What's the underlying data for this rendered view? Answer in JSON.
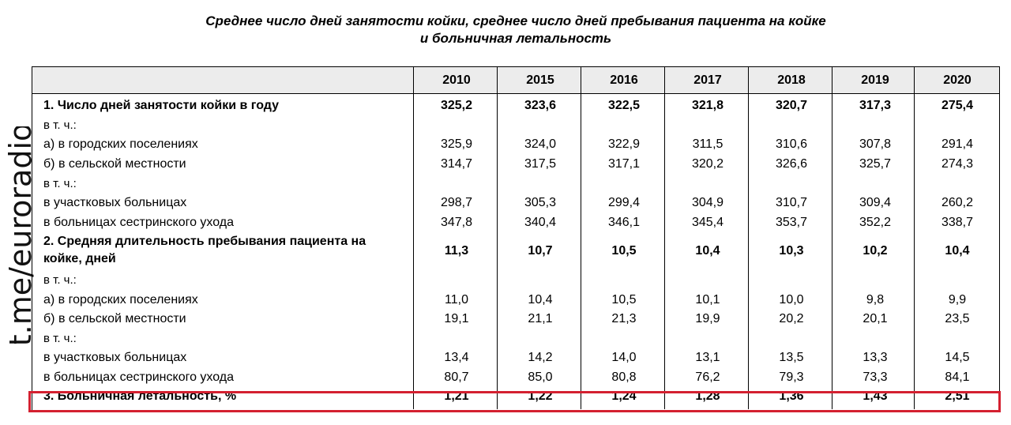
{
  "title": {
    "line1": "Среднее число дней занятости койки, среднее число дней пребывания пациента на койке",
    "line2": "и больничная летальность"
  },
  "watermark": "t.me/euroradio",
  "table": {
    "years": [
      "2010",
      "2015",
      "2016",
      "2017",
      "2018",
      "2019",
      "2020"
    ],
    "rows": [
      {
        "label": "1. Число дней занятости койки в году",
        "values": [
          "325,2",
          "323,6",
          "322,5",
          "321,8",
          "320,7",
          "317,3",
          "275,4"
        ]
      },
      {
        "label": "в т. ч.:",
        "values": []
      },
      {
        "label": "а) в городских поселениях",
        "values": [
          "325,9",
          "324,0",
          "322,9",
          "311,5",
          "310,6",
          "307,8",
          "291,4"
        ]
      },
      {
        "label": "б) в сельской местности",
        "values": [
          "314,7",
          "317,5",
          "317,1",
          "320,2",
          "326,6",
          "325,7",
          "274,3"
        ]
      },
      {
        "label": "в т. ч.:",
        "values": []
      },
      {
        "label": "в участковых больницах",
        "values": [
          "298,7",
          "305,3",
          "299,4",
          "304,9",
          "310,7",
          "309,4",
          "260,2"
        ]
      },
      {
        "label": "в больницах сестринского ухода",
        "values": [
          "347,8",
          "340,4",
          "346,1",
          "345,4",
          "353,7",
          "352,2",
          "338,7"
        ]
      },
      {
        "label": "2. Средняя длительность пребывания пациента на койке, дней",
        "values": [
          "11,3",
          "10,7",
          "10,5",
          "10,4",
          "10,3",
          "10,2",
          "10,4"
        ]
      },
      {
        "label": "в т. ч.:",
        "values": []
      },
      {
        "label": "а) в городских поселениях",
        "values": [
          "11,0",
          "10,4",
          "10,5",
          "10,1",
          "10,0",
          "9,8",
          "9,9"
        ]
      },
      {
        "label": "б) в сельской местности",
        "values": [
          "19,1",
          "21,1",
          "21,3",
          "19,9",
          "20,2",
          "20,1",
          "23,5"
        ]
      },
      {
        "label": "в т. ч.:",
        "values": []
      },
      {
        "label": "в участковых больницах",
        "values": [
          "13,4",
          "14,2",
          "14,0",
          "13,1",
          "13,5",
          "13,3",
          "14,5"
        ]
      },
      {
        "label": "в больницах сестринского ухода",
        "values": [
          "80,7",
          "85,0",
          "80,8",
          "76,2",
          "79,3",
          "73,3",
          "84,1"
        ]
      },
      {
        "label": "3. Больничная летальность, %",
        "values": [
          "1,21",
          "1,22",
          "1,24",
          "1,28",
          "1,36",
          "1,43",
          "2,51"
        ]
      }
    ]
  },
  "colors": {
    "highlight": "#d42030",
    "header_bg": "#ececec"
  }
}
